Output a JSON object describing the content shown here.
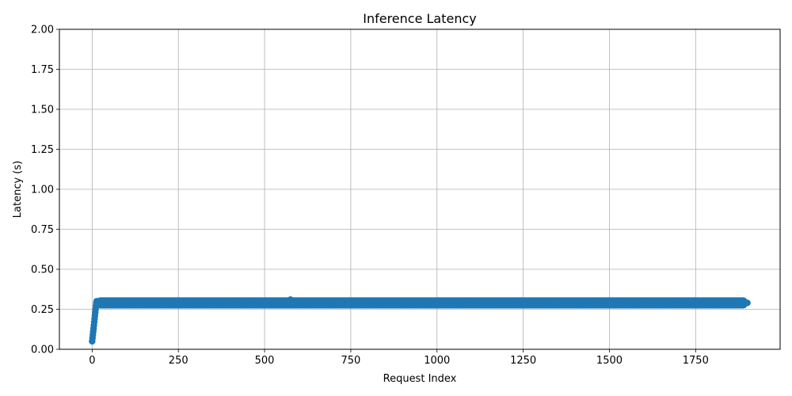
{
  "chart_data": {
    "type": "scatter",
    "title": "Inference Latency",
    "xlabel": "Request Index",
    "ylabel": "Latency (s)",
    "xlim": [
      -95,
      1995
    ],
    "ylim": [
      0,
      2
    ],
    "xticks": [
      0,
      250,
      500,
      750,
      1000,
      1250,
      1500,
      1750
    ],
    "yticks": [
      0.0,
      0.25,
      0.5,
      0.75,
      1.0,
      1.25,
      1.5,
      1.75,
      2.0
    ],
    "xtick_labels": [
      "0",
      "250",
      "500",
      "750",
      "1000",
      "1250",
      "1500",
      "1750"
    ],
    "ytick_labels": [
      "0.00",
      "0.25",
      "0.50",
      "0.75",
      "1.00",
      "1.25",
      "1.50",
      "1.75",
      "2.00"
    ],
    "grid": true,
    "color": "#1f77b4",
    "series": [
      {
        "x": [
          0,
          1,
          2,
          3,
          4,
          5,
          6,
          7,
          8,
          9,
          10,
          11,
          12,
          13,
          14,
          15,
          20,
          30,
          45,
          60,
          80,
          100,
          120,
          150,
          160,
          180,
          200,
          230,
          260,
          290,
          300,
          320,
          340,
          370,
          400,
          430,
          450,
          480,
          500,
          530,
          560,
          575,
          585,
          600,
          620,
          650,
          680,
          700,
          730,
          760,
          790,
          820,
          850,
          880,
          910,
          940,
          970,
          1000,
          1030,
          1060,
          1090,
          1120,
          1150,
          1180,
          1210,
          1240,
          1270,
          1300,
          1330,
          1360,
          1390,
          1420,
          1450,
          1480,
          1510,
          1540,
          1570,
          1600,
          1630,
          1660,
          1690,
          1720,
          1750,
          1780,
          1810,
          1840,
          1870,
          1900
        ],
        "y": [
          0.05,
          0.07,
          0.09,
          0.11,
          0.13,
          0.15,
          0.17,
          0.19,
          0.21,
          0.23,
          0.25,
          0.27,
          0.29,
          0.3,
          0.3,
          0.29,
          0.29,
          0.29,
          0.29,
          0.29,
          0.29,
          0.29,
          0.29,
          0.29,
          0.3,
          0.29,
          0.29,
          0.29,
          0.29,
          0.29,
          0.3,
          0.29,
          0.3,
          0.29,
          0.29,
          0.29,
          0.3,
          0.29,
          0.29,
          0.29,
          0.29,
          0.31,
          0.28,
          0.3,
          0.29,
          0.3,
          0.3,
          0.29,
          0.3,
          0.29,
          0.3,
          0.29,
          0.29,
          0.3,
          0.29,
          0.29,
          0.29,
          0.3,
          0.3,
          0.29,
          0.3,
          0.3,
          0.29,
          0.3,
          0.3,
          0.3,
          0.3,
          0.3,
          0.3,
          0.3,
          0.3,
          0.29,
          0.3,
          0.3,
          0.3,
          0.3,
          0.29,
          0.3,
          0.3,
          0.29,
          0.3,
          0.3,
          0.3,
          0.29,
          0.29,
          0.3,
          0.3,
          0.29
        ]
      }
    ]
  }
}
